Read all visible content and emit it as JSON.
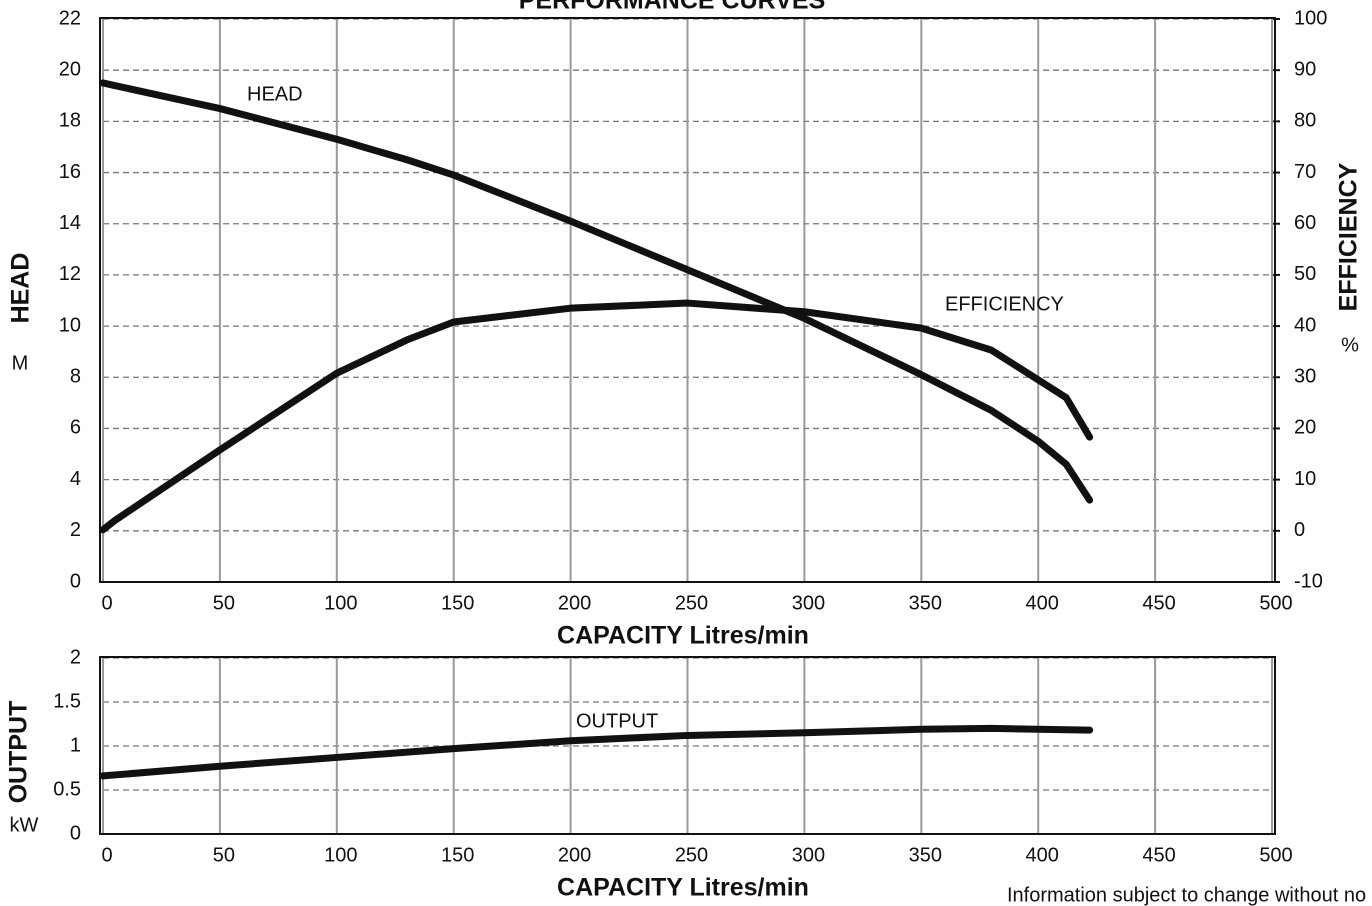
{
  "chart_data": [
    {
      "type": "line",
      "title": "PERFORMANCE CURVES",
      "x_label": "CAPACITY Litres/min",
      "y_label": "HEAD",
      "y_unit": "M",
      "y2_label": "EFFICIENCY",
      "y2_unit": "%",
      "x": [
        0,
        5,
        50,
        100,
        130,
        150,
        200,
        250,
        300,
        350,
        380,
        400,
        412,
        422
      ],
      "series": [
        {
          "name": "HEAD",
          "color": "#111111",
          "values": [
            19.5,
            19.4,
            18.5,
            17.3,
            16.5,
            15.9,
            14.1,
            12.2,
            10.3,
            8.1,
            6.7,
            5.5,
            4.6,
            3.2
          ]
        },
        {
          "name": "EFFICIENCY",
          "color": "#111111",
          "axis": "y2",
          "values": [
            0.2,
            2,
            15.8,
            30.8,
            37.3,
            40.8,
            43.5,
            44.5,
            42.8,
            39.6,
            35.3,
            29.5,
            26,
            18.3
          ]
        }
      ],
      "xlim": [
        0,
        500
      ],
      "xticks": [
        0,
        50,
        100,
        150,
        200,
        250,
        300,
        350,
        400,
        450,
        500
      ],
      "ylim": [
        0,
        22
      ],
      "yticks": [
        0,
        2,
        4,
        6,
        8,
        10,
        12,
        14,
        16,
        18,
        20,
        22
      ],
      "y2lim": [
        -10,
        100
      ],
      "y2ticks": [
        -10,
        0,
        10,
        20,
        30,
        40,
        50,
        60,
        70,
        80,
        90,
        100
      ],
      "grid": true
    },
    {
      "type": "line",
      "x_label": "CAPACITY Litres/min",
      "y_label": "OUTPUT",
      "y_unit": "kW",
      "x": [
        0,
        50,
        100,
        150,
        200,
        250,
        300,
        350,
        380,
        422
      ],
      "series": [
        {
          "name": "OUTPUT",
          "color": "#111111",
          "values": [
            0.66,
            0.77,
            0.87,
            0.97,
            1.06,
            1.12,
            1.15,
            1.19,
            1.2,
            1.18
          ]
        }
      ],
      "xlim": [
        0,
        500
      ],
      "xticks": [
        0,
        50,
        100,
        150,
        200,
        250,
        300,
        350,
        400,
        450,
        500
      ],
      "ylim": [
        0,
        2
      ],
      "yticks": [
        0,
        0.5,
        1,
        1.5,
        2
      ],
      "grid": true,
      "footnote": "Information subject to change without no"
    }
  ]
}
